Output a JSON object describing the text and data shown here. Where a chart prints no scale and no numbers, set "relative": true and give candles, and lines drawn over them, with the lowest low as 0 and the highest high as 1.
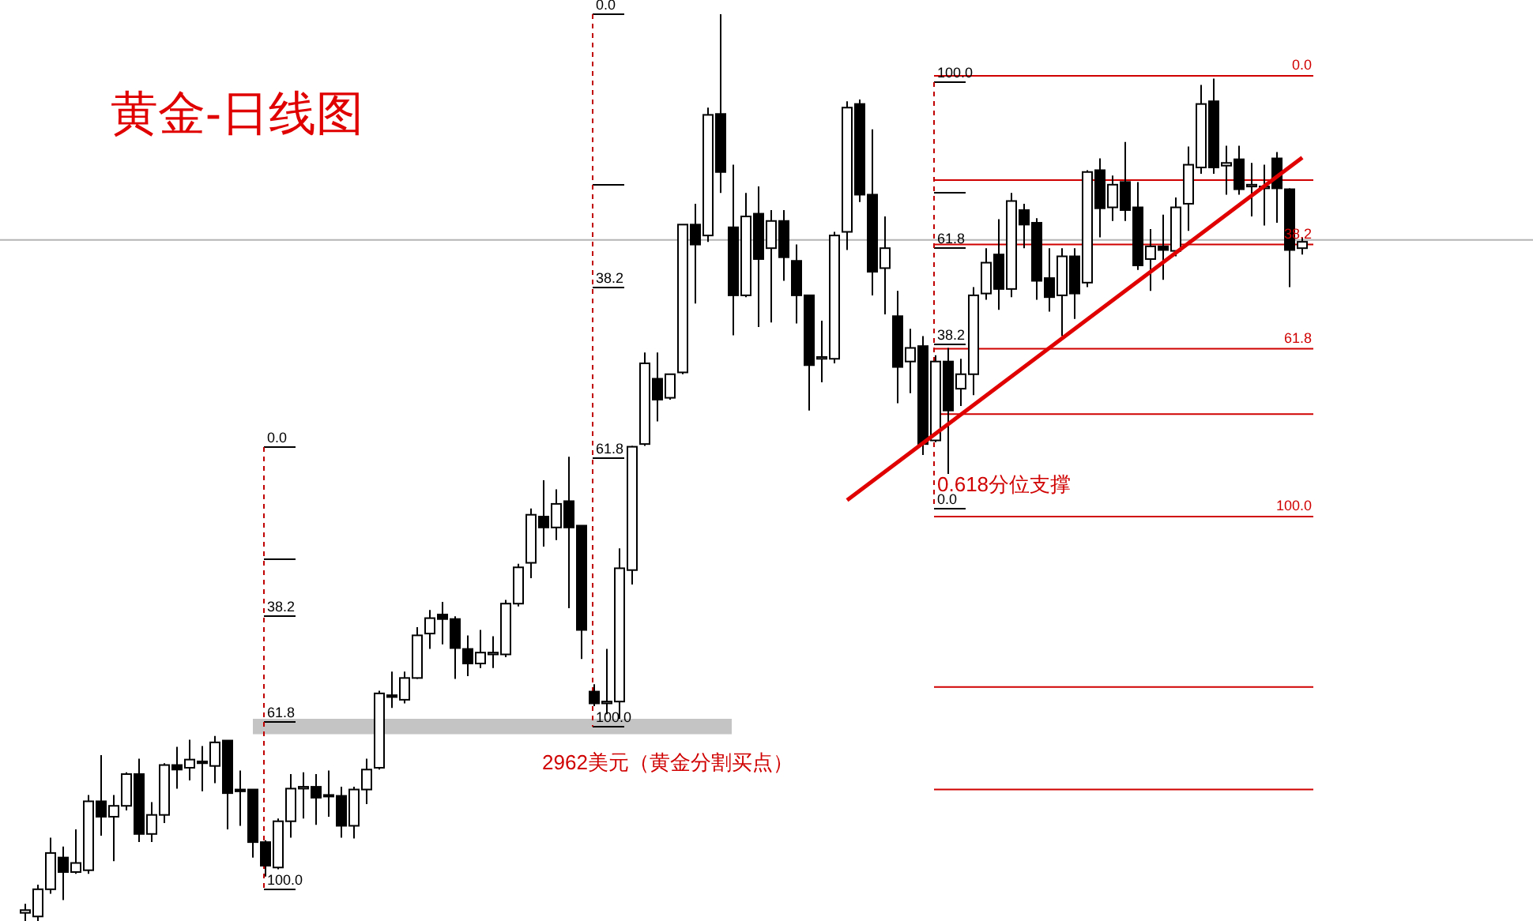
{
  "chart_data": {
    "type": "candlestick",
    "title": "黄金-日线图",
    "relative": true,
    "categories": [
      null,
      null,
      null,
      null,
      null,
      null,
      null,
      null,
      null,
      null,
      null,
      null,
      null,
      null,
      null,
      null,
      null,
      null,
      null,
      null,
      null,
      null,
      null,
      null,
      null,
      null,
      null,
      null,
      null,
      null,
      null,
      null,
      null,
      null,
      null,
      null,
      null,
      null,
      null,
      null,
      null,
      null,
      null,
      null,
      null,
      null,
      null,
      null,
      null,
      null,
      null,
      null,
      null,
      null,
      null,
      null,
      null,
      null,
      null,
      null,
      null,
      null,
      null,
      null,
      null,
      null,
      null,
      null,
      null,
      null,
      null,
      null,
      null,
      null,
      null,
      null,
      null,
      null,
      null,
      null,
      null,
      null,
      null,
      null,
      null,
      null,
      null,
      null,
      null,
      null,
      null,
      null,
      null,
      null,
      null,
      null,
      null,
      null,
      null,
      null,
      null,
      null
    ],
    "ohlc": [
      [
        0.009,
        0.019,
        0,
        0.012
      ],
      [
        0.005,
        0.04,
        0,
        0.035
      ],
      [
        0.035,
        0.092,
        0.03,
        0.075
      ],
      [
        0.07,
        0.082,
        0.023,
        0.054
      ],
      [
        0.054,
        0.101,
        0.052,
        0.064
      ],
      [
        0.056,
        0.139,
        0.052,
        0.132
      ],
      [
        0.132,
        0.183,
        0.094,
        0.115
      ],
      [
        0.115,
        0.139,
        0.066,
        0.127
      ],
      [
        0.127,
        0.164,
        0.122,
        0.162
      ],
      [
        0.162,
        0.179,
        0.087,
        0.096
      ],
      [
        0.096,
        0.131,
        0.087,
        0.117
      ],
      [
        0.117,
        0.174,
        0.108,
        0.172
      ],
      [
        0.172,
        0.192,
        0.146,
        0.167
      ],
      [
        0.169,
        0.2,
        0.155,
        0.178
      ],
      [
        0.176,
        0.193,
        0.143,
        0.174
      ],
      [
        0.171,
        0.204,
        0.152,
        0.197
      ],
      [
        0.199,
        0.199,
        0.101,
        0.141
      ],
      [
        0.145,
        0.166,
        0.105,
        0.143
      ],
      [
        0.145,
        0.145,
        0.07,
        0.087
      ],
      [
        0.087,
        0.089,
        0.049,
        0.061
      ],
      [
        0.059,
        0.113,
        0.057,
        0.11
      ],
      [
        0.11,
        0.162,
        0.092,
        0.146
      ],
      [
        0.146,
        0.164,
        0.113,
        0.148
      ],
      [
        0.148,
        0.162,
        0.106,
        0.136
      ],
      [
        0.138,
        0.166,
        0.115,
        0.139
      ],
      [
        0.138,
        0.148,
        0.092,
        0.105
      ],
      [
        0.105,
        0.148,
        0.091,
        0.145
      ],
      [
        0.145,
        0.179,
        0.129,
        0.167
      ],
      [
        0.169,
        0.254,
        0.167,
        0.251
      ],
      [
        0.249,
        0.275,
        0.235,
        0.247
      ],
      [
        0.244,
        0.275,
        0.24,
        0.268
      ],
      [
        0.268,
        0.324,
        0.267,
        0.315
      ],
      [
        0.317,
        0.343,
        0.3,
        0.334
      ],
      [
        0.338,
        0.352,
        0.305,
        0.333
      ],
      [
        0.333,
        0.336,
        0.267,
        0.301
      ],
      [
        0.3,
        0.315,
        0.27,
        0.284
      ],
      [
        0.284,
        0.321,
        0.279,
        0.296
      ],
      [
        0.294,
        0.314,
        0.279,
        0.296
      ],
      [
        0.294,
        0.354,
        0.291,
        0.35
      ],
      [
        0.35,
        0.394,
        0.347,
        0.39
      ],
      [
        0.395,
        0.455,
        0.378,
        0.448
      ],
      [
        0.446,
        0.486,
        0.413,
        0.434
      ],
      [
        0.434,
        0.476,
        0.42,
        0.46
      ],
      [
        0.463,
        0.512,
        0.345,
        0.434
      ],
      [
        0.436,
        0.436,
        0.289,
        0.321
      ],
      [
        0.253,
        0.261,
        0.237,
        0.24
      ],
      [
        0.24,
        0.3,
        0.228,
        0.242
      ],
      [
        0.242,
        0.411,
        0.223,
        0.389
      ],
      [
        0.387,
        0.524,
        0.371,
        0.523
      ],
      [
        0.526,
        0.627,
        0.524,
        0.615
      ],
      [
        0.598,
        0.627,
        0.551,
        0.575
      ],
      [
        0.577,
        0.603,
        0.575,
        0.603
      ],
      [
        0.605,
        0.768,
        0.603,
        0.768
      ],
      [
        0.768,
        0.791,
        0.681,
        0.746
      ],
      [
        0.756,
        0.897,
        0.749,
        0.889
      ],
      [
        0.89,
        1.0,
        0.803,
        0.826
      ],
      [
        0.765,
        0.834,
        0.646,
        0.69
      ],
      [
        0.69,
        0.803,
        0.688,
        0.777
      ],
      [
        0.78,
        0.81,
        0.655,
        0.73
      ],
      [
        0.742,
        0.784,
        0.66,
        0.772
      ],
      [
        0.772,
        0.784,
        0.706,
        0.732
      ],
      [
        0.728,
        0.746,
        0.659,
        0.69
      ],
      [
        0.69,
        0.69,
        0.563,
        0.613
      ],
      [
        0.62,
        0.662,
        0.594,
        0.622
      ],
      [
        0.62,
        0.76,
        0.615,
        0.756
      ],
      [
        0.76,
        0.904,
        0.74,
        0.897
      ],
      [
        0.901,
        0.906,
        0.793,
        0.801
      ],
      [
        0.801,
        0.873,
        0.69,
        0.716
      ],
      [
        0.72,
        0.777,
        0.669,
        0.742
      ],
      [
        0.667,
        0.695,
        0.571,
        0.611
      ],
      [
        0.617,
        0.653,
        0.582,
        0.632
      ],
      [
        0.634,
        0.645,
        0.514,
        0.526
      ],
      [
        0.53,
        0.624,
        0.528,
        0.617
      ],
      [
        0.617,
        0.632,
        0.493,
        0.563
      ],
      [
        0.587,
        0.62,
        0.568,
        0.603
      ],
      [
        0.603,
        0.699,
        0.58,
        0.69
      ],
      [
        0.692,
        0.742,
        0.685,
        0.726
      ],
      [
        0.735,
        0.774,
        0.674,
        0.697
      ],
      [
        0.697,
        0.803,
        0.688,
        0.794
      ],
      [
        0.784,
        0.791,
        0.742,
        0.768
      ],
      [
        0.77,
        0.775,
        0.685,
        0.706
      ],
      [
        0.709,
        0.742,
        0.672,
        0.688
      ],
      [
        0.69,
        0.742,
        0.645,
        0.733
      ],
      [
        0.733,
        0.742,
        0.664,
        0.692
      ],
      [
        0.704,
        0.828,
        0.699,
        0.826
      ],
      [
        0.828,
        0.841,
        0.754,
        0.786
      ],
      [
        0.787,
        0.822,
        0.772,
        0.812
      ],
      [
        0.815,
        0.859,
        0.772,
        0.784
      ],
      [
        0.787,
        0.815,
        0.718,
        0.723
      ],
      [
        0.73,
        0.763,
        0.695,
        0.744
      ],
      [
        0.744,
        0.779,
        0.707,
        0.74
      ],
      [
        0.739,
        0.798,
        0.733,
        0.787
      ],
      [
        0.791,
        0.854,
        0.761,
        0.834
      ],
      [
        0.831,
        0.922,
        0.824,
        0.901
      ],
      [
        0.904,
        0.929,
        0.824,
        0.831
      ],
      [
        0.833,
        0.855,
        0.801,
        0.836
      ],
      [
        0.84,
        0.855,
        0.801,
        0.807
      ],
      [
        0.81,
        0.836,
        0.777,
        0.812
      ],
      [
        0.808,
        0.834,
        0.767,
        0.81
      ],
      [
        0.841,
        0.848,
        0.77,
        0.808
      ],
      [
        0.807,
        0.808,
        0.699,
        0.74
      ],
      [
        0.742,
        0.754,
        0.735,
        0.749
      ]
    ],
    "series": [
      {
        "type": "line",
        "color": "#e00000",
        "values": [
          null,
          null,
          null,
          null,
          null,
          null,
          null,
          null,
          null,
          null,
          null,
          null,
          null,
          null,
          null,
          null,
          null,
          null,
          null,
          null,
          null,
          null,
          null,
          null,
          null,
          null,
          null,
          null,
          null,
          null,
          null,
          null,
          null,
          null,
          null,
          null,
          null,
          null,
          null,
          null,
          null,
          null,
          null,
          null,
          null,
          null,
          null,
          null,
          null,
          null,
          null,
          null,
          null,
          null,
          null,
          null,
          null,
          null,
          null,
          null,
          null,
          null,
          null,
          null,
          null,
          0.464,
          null,
          null,
          null,
          null,
          null,
          null,
          null,
          null,
          null,
          null,
          null,
          null,
          null,
          null,
          null,
          null,
          null,
          null,
          null,
          null,
          null,
          null,
          null,
          null,
          null,
          null,
          null,
          null,
          null,
          null,
          null,
          null,
          null,
          null,
          null,
          0.842
        ]
      }
    ],
    "ref_lines": [
      {
        "axis": "y",
        "value": 0.932,
        "color": "#d00000"
      },
      {
        "axis": "y",
        "value": 0.817,
        "color": "#d00000"
      },
      {
        "axis": "y",
        "value": 0.746,
        "color": "#d00000"
      },
      {
        "axis": "y",
        "value": 0.631,
        "color": "#d00000"
      },
      {
        "axis": "y",
        "value": 0.559,
        "color": "#d00000"
      },
      {
        "axis": "y",
        "value": 0.446,
        "color": "#d00000"
      },
      {
        "axis": "y",
        "value": 0.258,
        "color": "#d00000"
      },
      {
        "axis": "y",
        "value": 0.145,
        "color": "#d00000"
      },
      {
        "axis": "y",
        "value": 0.751,
        "color": "#b4b4b4"
      }
    ],
    "bands": [
      {
        "axis": "y",
        "from": 0.206,
        "to": 0.223,
        "color": "#c4c4c4"
      }
    ],
    "annotations": [
      "0.0",
      "38.2",
      "61.8",
      "100.0",
      "0.0",
      "38.2",
      "61.8",
      "100.0",
      "100.0",
      "61.8",
      "38.2",
      "0.0",
      "0.0",
      "38.2",
      "61.8",
      "100.0",
      "0.618分位支撑",
      "2962美元（黄金分割买点）"
    ]
  }
}
